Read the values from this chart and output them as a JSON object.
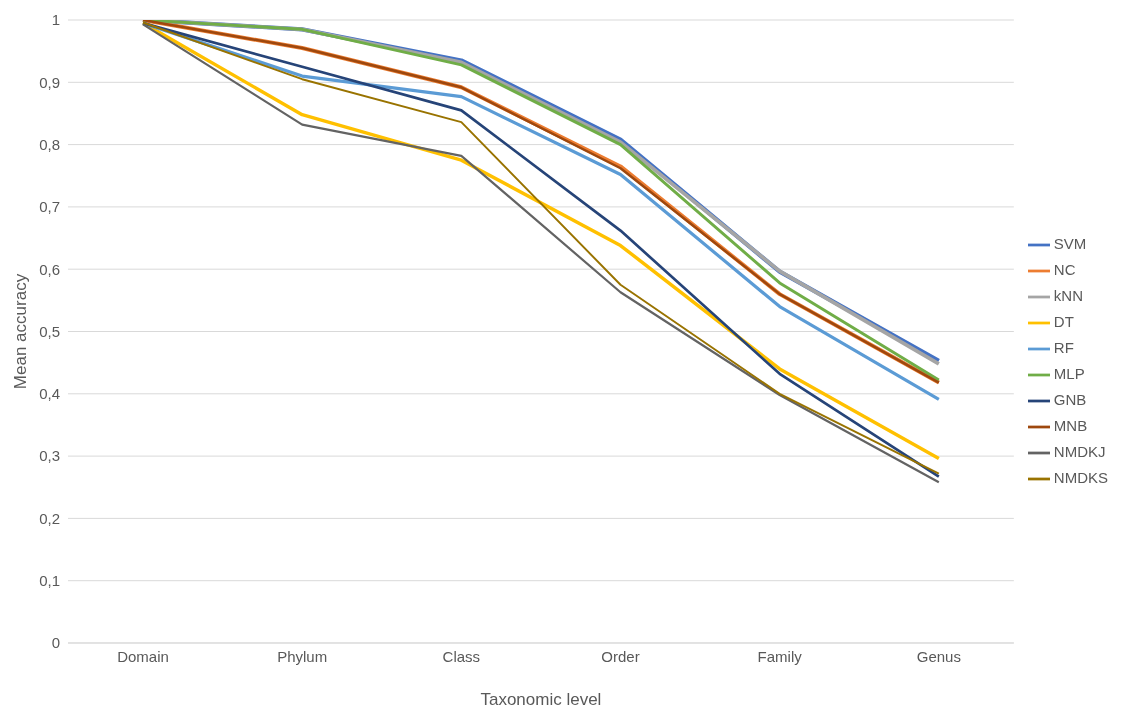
{
  "chart_data": {
    "type": "line",
    "xlabel": "Taxonomic level",
    "ylabel": "Mean accuracy",
    "categories": [
      "Domain",
      "Phylum",
      "Class",
      "Order",
      "Family",
      "Genus"
    ],
    "series": [
      {
        "name": "SVM",
        "color": "#4472c4",
        "values": [
          1,
          0.985,
          0.935,
          0.808,
          0.596,
          0.453
        ]
      },
      {
        "name": "NC",
        "color": "#ed7d31",
        "values": [
          1,
          0.955,
          0.892,
          0.765,
          0.56,
          0.418
        ]
      },
      {
        "name": "kNN",
        "color": "#a5a5a5",
        "values": [
          1,
          0.985,
          0.932,
          0.804,
          0.597,
          0.448
        ]
      },
      {
        "name": "DT",
        "color": "#ffc000",
        "values": [
          0.995,
          0.848,
          0.775,
          0.638,
          0.44,
          0.296
        ]
      },
      {
        "name": "RF",
        "color": "#5b9bd5",
        "values": [
          0.995,
          0.91,
          0.877,
          0.752,
          0.54,
          0.391
        ]
      },
      {
        "name": "MLP",
        "color": "#70ad47",
        "values": [
          1,
          0.985,
          0.928,
          0.8,
          0.578,
          0.422
        ]
      },
      {
        "name": "GNB",
        "color": "#264478",
        "values": [
          0.995,
          0.925,
          0.855,
          0.662,
          0.432,
          0.267
        ]
      },
      {
        "name": "MNB",
        "color": "#9e480e",
        "values": [
          1,
          0.955,
          0.892,
          0.762,
          0.56,
          0.418
        ]
      },
      {
        "name": "NMDKJ",
        "color": "#636363",
        "values": [
          0.993,
          0.832,
          0.782,
          0.563,
          0.398,
          0.258
        ]
      },
      {
        "name": "NMDKS",
        "color": "#997300",
        "values": [
          0.996,
          0.905,
          0.836,
          0.575,
          0.4,
          0.272
        ]
      }
    ],
    "ylim": [
      0,
      1
    ],
    "yticks": [
      0,
      {
        "value": 0.1,
        "label": "0,1"
      },
      {
        "value": 0.2,
        "label": "0,2"
      },
      {
        "value": 0.3,
        "label": "0,3"
      },
      {
        "value": 0.4,
        "label": "0,4"
      },
      {
        "value": 0.5,
        "label": "0,5"
      },
      {
        "value": 0.6,
        "label": "0,6"
      },
      {
        "value": 0.7,
        "label": "0,7"
      },
      {
        "value": 0.8,
        "label": "0,8"
      },
      {
        "value": 0.9,
        "label": "0,9"
      },
      1
    ],
    "grid": "y",
    "legend": "right",
    "marker": "none",
    "line_style": "solid"
  }
}
